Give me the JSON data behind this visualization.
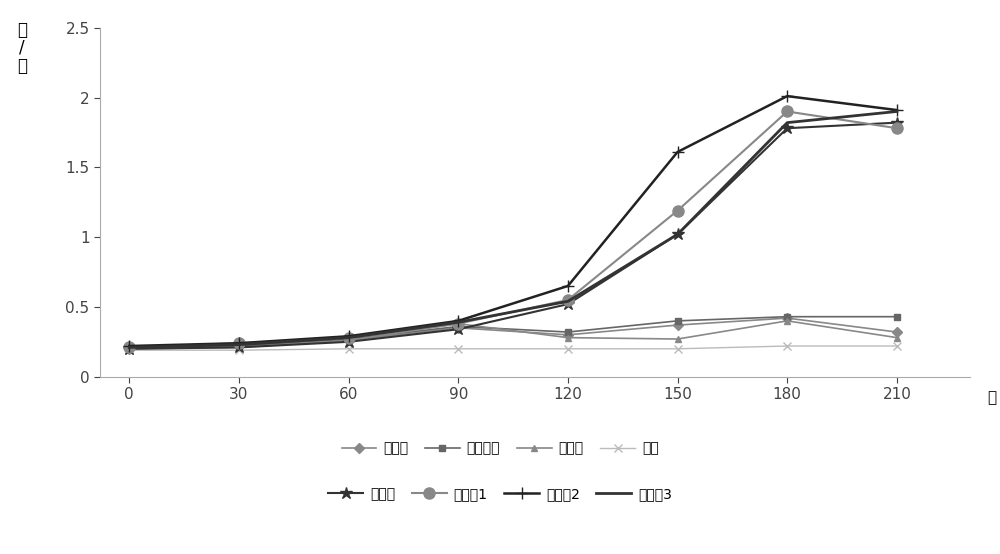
{
  "x": [
    0,
    30,
    60,
    90,
    120,
    150,
    180,
    210
  ],
  "series": {
    "蘑菇渣": [
      0.2,
      0.22,
      0.26,
      0.35,
      0.3,
      0.37,
      0.42,
      0.32
    ],
    "葡萄皮渣": [
      0.22,
      0.22,
      0.27,
      0.36,
      0.32,
      0.4,
      0.43,
      0.43
    ],
    "酵母渣": [
      0.2,
      0.21,
      0.26,
      0.38,
      0.28,
      0.27,
      0.4,
      0.28
    ],
    "豆粕": [
      0.19,
      0.19,
      0.2,
      0.2,
      0.2,
      0.2,
      0.22,
      0.22
    ],
    "腐植酸": [
      0.2,
      0.21,
      0.25,
      0.34,
      0.52,
      1.02,
      1.78,
      1.82
    ],
    "实施例1": [
      0.21,
      0.24,
      0.28,
      0.38,
      0.55,
      1.19,
      1.9,
      1.78
    ],
    "实施例2": [
      0.22,
      0.24,
      0.29,
      0.4,
      0.65,
      1.61,
      2.01,
      1.91
    ],
    "实施例3": [
      0.21,
      0.23,
      0.28,
      0.39,
      0.54,
      1.02,
      1.82,
      1.9
    ]
  },
  "line_configs": {
    "蘑菇渣": {
      "color": "#888888",
      "marker": "D",
      "markersize": 5,
      "linewidth": 1.2,
      "markerfacecolor": "#888888"
    },
    "葡萄皮渣": {
      "color": "#666666",
      "marker": "s",
      "markersize": 5,
      "linewidth": 1.2,
      "markerfacecolor": "#666666"
    },
    "酵母渣": {
      "color": "#888888",
      "marker": "^",
      "markersize": 5,
      "linewidth": 1.2,
      "markerfacecolor": "#888888"
    },
    "豆粕": {
      "color": "#bbbbbb",
      "marker": "x",
      "markersize": 6,
      "linewidth": 1.0,
      "markerfacecolor": "none"
    },
    "腐植酸": {
      "color": "#333333",
      "marker": "*",
      "markersize": 9,
      "linewidth": 1.5,
      "markerfacecolor": "#333333"
    },
    "实施例1": {
      "color": "#888888",
      "marker": "o",
      "markersize": 8,
      "linewidth": 1.5,
      "markerfacecolor": "#888888"
    },
    "实施例2": {
      "color": "#222222",
      "marker": "+",
      "markersize": 9,
      "linewidth": 1.8,
      "markerfacecolor": "#222222"
    },
    "实施例3": {
      "color": "#333333",
      "marker": "None",
      "markersize": 0,
      "linewidth": 2.0,
      "markerfacecolor": "none"
    }
  },
  "ylabel_chars": [
    "亿",
    "/",
    "克"
  ],
  "xlabel": "天",
  "ylim": [
    0,
    2.5
  ],
  "yticks": [
    0,
    0.5,
    1.0,
    1.5,
    2.0,
    2.5
  ],
  "ytick_labels": [
    "0",
    "0.5",
    "1",
    "1.5",
    "2",
    "2.5"
  ],
  "xticks": [
    0,
    30,
    60,
    90,
    120,
    150,
    180,
    210
  ],
  "bg_color": "#ffffff",
  "plot_bg": "#ffffff",
  "legend_row1": [
    "蘑菇渣",
    "葡萄皮渣",
    "酵母渣",
    "豆粕"
  ],
  "legend_row2": [
    "腐植酸",
    "实施例1",
    "实施例2",
    "实施例3"
  ]
}
